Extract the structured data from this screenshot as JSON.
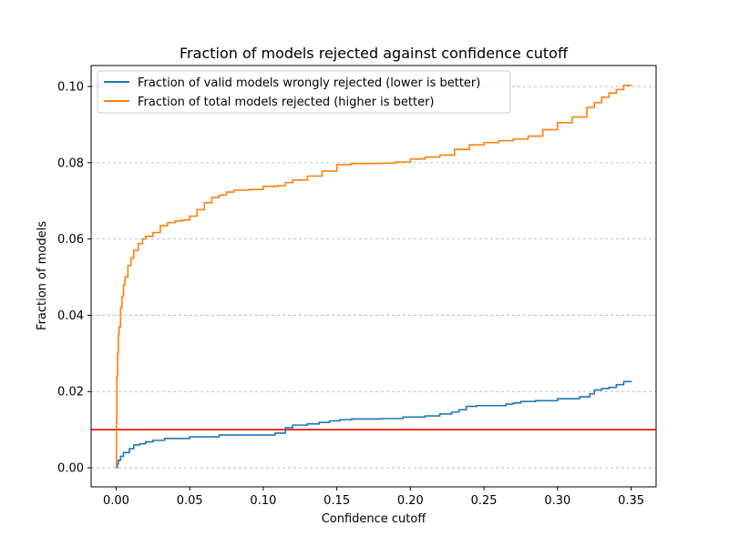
{
  "chart_data": {
    "type": "line",
    "title": "Fraction of models rejected against confidence cutoff",
    "xlabel": "Confidence cutoff",
    "ylabel": "Fraction of models",
    "xlim": [
      -0.017,
      0.367
    ],
    "ylim": [
      -0.005,
      0.1055
    ],
    "xticks": [
      0.0,
      0.05,
      0.1,
      0.15,
      0.2,
      0.25,
      0.3,
      0.35
    ],
    "xtick_labels": [
      "0.00",
      "0.05",
      "0.10",
      "0.15",
      "0.20",
      "0.25",
      "0.30",
      "0.35"
    ],
    "yticks": [
      0.0,
      0.02,
      0.04,
      0.06,
      0.08,
      0.1
    ],
    "ytick_labels": [
      "0.00",
      "0.02",
      "0.04",
      "0.06",
      "0.08",
      "0.10"
    ],
    "grid": "horizontal dashed",
    "legend_position": "top-left",
    "reference_line": {
      "y": 0.01,
      "color": "#ff0000"
    },
    "series": [
      {
        "name": "Fraction of valid models wrongly rejected (lower is better)",
        "color": "#1f77b4",
        "step": true,
        "x": [
          0.0,
          0.0008,
          0.0015,
          0.003,
          0.005,
          0.009,
          0.012,
          0.016,
          0.02,
          0.025,
          0.033,
          0.05,
          0.07,
          0.09,
          0.108,
          0.115,
          0.12,
          0.13,
          0.138,
          0.145,
          0.152,
          0.16,
          0.18,
          0.195,
          0.21,
          0.22,
          0.228,
          0.233,
          0.238,
          0.245,
          0.265,
          0.27,
          0.275,
          0.285,
          0.3,
          0.315,
          0.322,
          0.325,
          0.33,
          0.335,
          0.34,
          0.345,
          0.35
        ],
        "y": [
          0.0,
          0.001,
          0.002,
          0.003,
          0.004,
          0.005,
          0.006,
          0.0063,
          0.0068,
          0.0072,
          0.0077,
          0.0081,
          0.0086,
          0.0086,
          0.0091,
          0.0105,
          0.0112,
          0.0115,
          0.0119,
          0.0123,
          0.0126,
          0.0128,
          0.0129,
          0.0133,
          0.0136,
          0.0141,
          0.0146,
          0.0152,
          0.0161,
          0.0163,
          0.0167,
          0.017,
          0.0174,
          0.0176,
          0.0181,
          0.0186,
          0.0194,
          0.0204,
          0.0208,
          0.0211,
          0.0218,
          0.0226,
          0.0228
        ]
      },
      {
        "name": "Fraction of total models rejected (higher is better)",
        "color": "#ff7f0e",
        "step": true,
        "x": [
          0.0,
          0.0002,
          0.0005,
          0.001,
          0.0015,
          0.002,
          0.003,
          0.004,
          0.005,
          0.006,
          0.008,
          0.01,
          0.012,
          0.015,
          0.018,
          0.02,
          0.025,
          0.03,
          0.035,
          0.04,
          0.045,
          0.05,
          0.055,
          0.06,
          0.065,
          0.07,
          0.075,
          0.08,
          0.09,
          0.1,
          0.11,
          0.115,
          0.12,
          0.13,
          0.14,
          0.15,
          0.16,
          0.18,
          0.19,
          0.2,
          0.21,
          0.22,
          0.23,
          0.24,
          0.25,
          0.26,
          0.27,
          0.28,
          0.29,
          0.3,
          0.31,
          0.32,
          0.325,
          0.33,
          0.335,
          0.34,
          0.345,
          0.35
        ],
        "y": [
          0.0,
          0.012,
          0.024,
          0.03,
          0.035,
          0.037,
          0.042,
          0.045,
          0.048,
          0.05,
          0.053,
          0.055,
          0.057,
          0.0588,
          0.06,
          0.0607,
          0.0617,
          0.0635,
          0.0643,
          0.0647,
          0.065,
          0.066,
          0.0677,
          0.0695,
          0.0709,
          0.0715,
          0.0723,
          0.0728,
          0.073,
          0.0738,
          0.074,
          0.0748,
          0.0755,
          0.0765,
          0.0778,
          0.0795,
          0.0798,
          0.0799,
          0.0802,
          0.081,
          0.0815,
          0.082,
          0.0835,
          0.0847,
          0.0853,
          0.0858,
          0.0862,
          0.087,
          0.0887,
          0.0905,
          0.092,
          0.0945,
          0.0958,
          0.0972,
          0.0983,
          0.0992,
          0.1003,
          0.1005
        ]
      }
    ]
  }
}
